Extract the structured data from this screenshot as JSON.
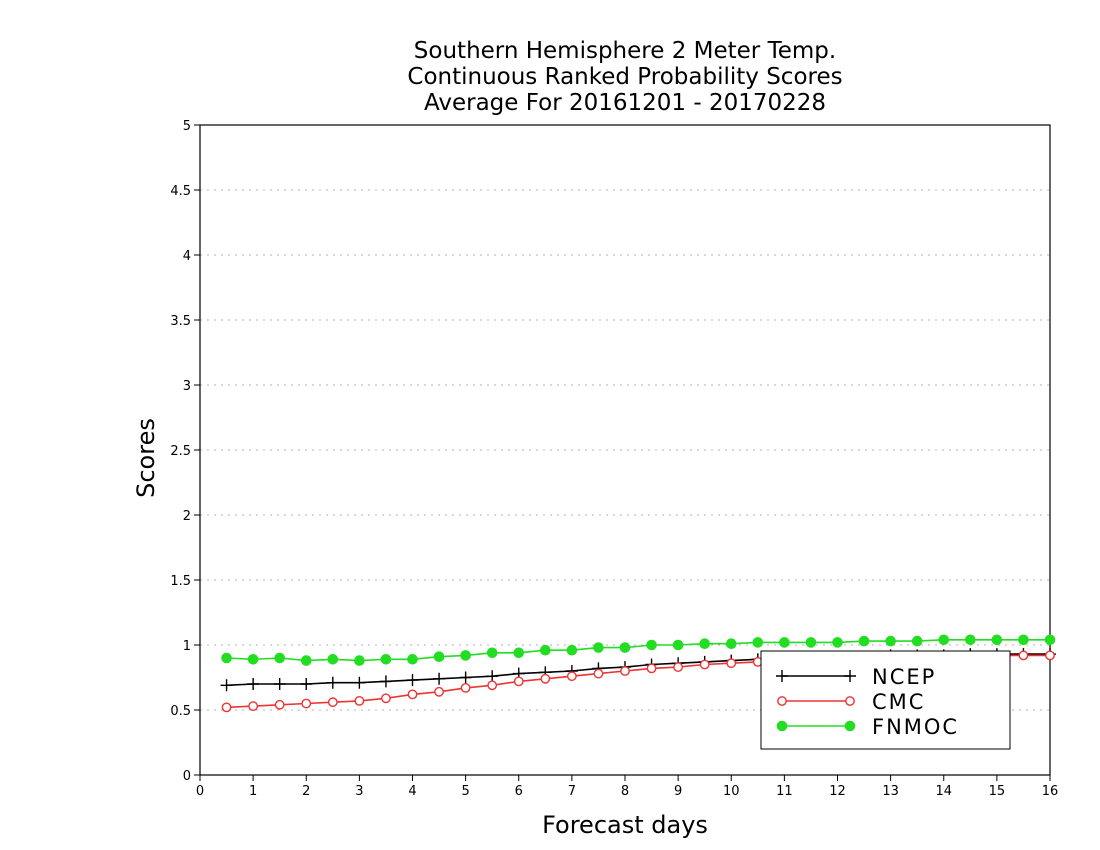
{
  "chart_data": {
    "type": "line",
    "title": [
      "Southern Hemisphere 2 Meter Temp.",
      "Continuous Ranked Probability Scores",
      "Average For 20161201 - 20170228"
    ],
    "xlabel": "Forecast days",
    "ylabel": "Scores",
    "xlim": [
      0,
      16
    ],
    "ylim": [
      0,
      5
    ],
    "xticks": [
      "0",
      "1",
      "2",
      "3",
      "4",
      "5",
      "6",
      "7",
      "8",
      "9",
      "10",
      "11",
      "12",
      "13",
      "14",
      "15",
      "16"
    ],
    "yticks": [
      "0",
      "0.5",
      "1",
      "1.5",
      "2",
      "2.5",
      "3",
      "3.5",
      "4",
      "4.5",
      "5"
    ],
    "grid": true,
    "legend_position": "bottom-right",
    "x": [
      0.5,
      1,
      1.5,
      2,
      2.5,
      3,
      3.5,
      4,
      4.5,
      5,
      5.5,
      6,
      6.5,
      7,
      7.5,
      8,
      8.5,
      9,
      9.5,
      10,
      10.5,
      11,
      11.5,
      12,
      12.5,
      13,
      13.5,
      14,
      14.5,
      15,
      15.5,
      16
    ],
    "series": [
      {
        "name": "NCEP",
        "color": "#000000",
        "marker": "plus",
        "values": [
          0.69,
          0.7,
          0.7,
          0.7,
          0.71,
          0.71,
          0.72,
          0.73,
          0.74,
          0.75,
          0.76,
          0.78,
          0.79,
          0.8,
          0.82,
          0.83,
          0.85,
          0.86,
          0.87,
          0.88,
          0.89,
          0.9,
          0.9,
          0.91,
          0.91,
          0.92,
          0.92,
          0.92,
          0.93,
          0.93,
          0.93,
          0.93
        ]
      },
      {
        "name": "CMC",
        "color": "#ee3333",
        "marker": "open-circle",
        "values": [
          0.52,
          0.53,
          0.54,
          0.55,
          0.56,
          0.57,
          0.59,
          0.62,
          0.64,
          0.67,
          0.69,
          0.72,
          0.74,
          0.76,
          0.78,
          0.8,
          0.82,
          0.83,
          0.85,
          0.86,
          0.87,
          0.88,
          0.88,
          0.89,
          0.9,
          0.9,
          0.91,
          0.91,
          0.91,
          0.92,
          0.92,
          0.92
        ]
      },
      {
        "name": "FNMOC",
        "color": "#22dd22",
        "marker": "filled-circle",
        "values": [
          0.9,
          0.89,
          0.9,
          0.88,
          0.89,
          0.88,
          0.89,
          0.89,
          0.91,
          0.92,
          0.94,
          0.94,
          0.96,
          0.96,
          0.98,
          0.98,
          1.0,
          1.0,
          1.01,
          1.01,
          1.02,
          1.02,
          1.02,
          1.02,
          1.03,
          1.03,
          1.03,
          1.04,
          1.04,
          1.04,
          1.04,
          1.04
        ]
      }
    ]
  }
}
